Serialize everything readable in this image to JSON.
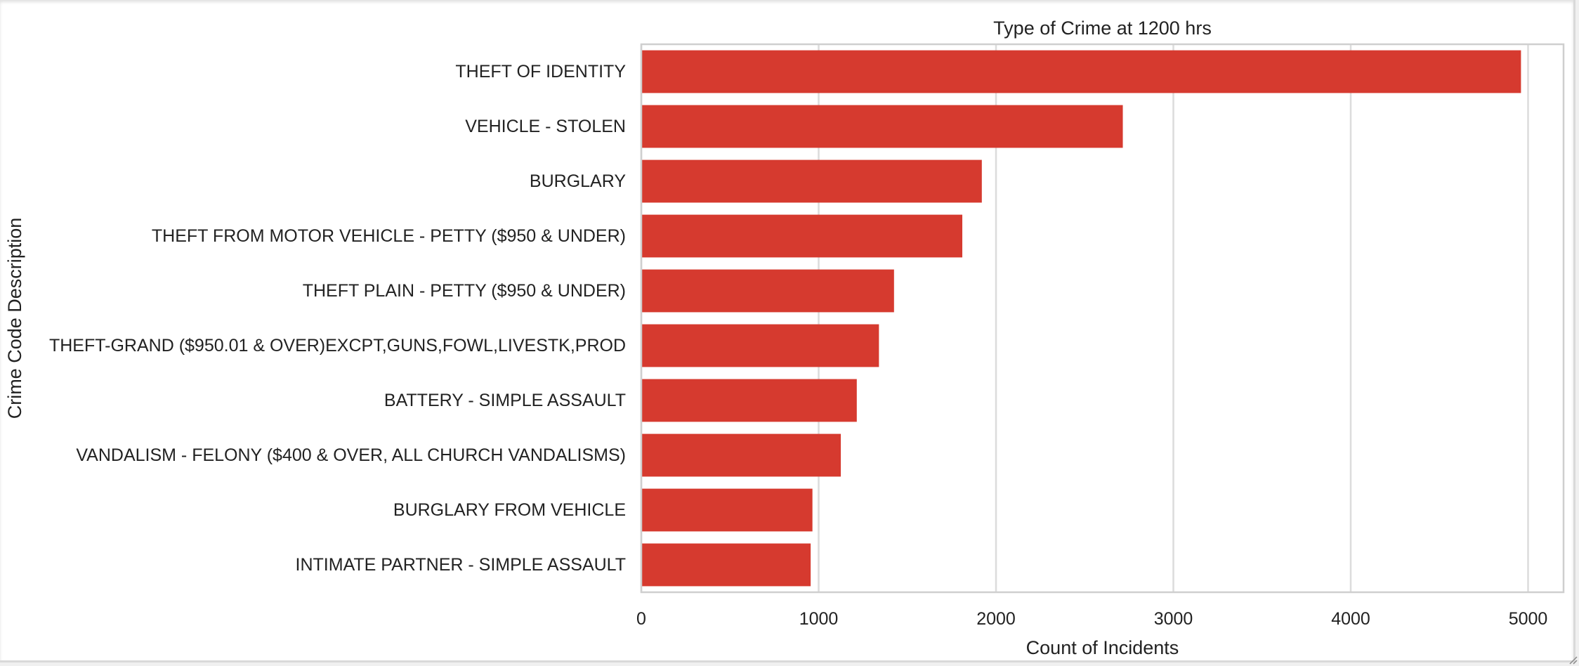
{
  "chart_data": {
    "type": "bar",
    "orientation": "horizontal",
    "title": "Type of Crime at 1200 hrs",
    "xlabel": "Count of Incidents",
    "ylabel": "Crime Code Description",
    "categories": [
      "THEFT OF IDENTITY",
      "VEHICLE - STOLEN",
      "BURGLARY",
      "THEFT FROM MOTOR VEHICLE - PETTY ($950 & UNDER)",
      "THEFT PLAIN - PETTY ($950 & UNDER)",
      "THEFT-GRAND ($950.01 & OVER)EXCPT,GUNS,FOWL,LIVESTK,PROD",
      "BATTERY - SIMPLE ASSAULT",
      "VANDALISM - FELONY ($400 & OVER, ALL CHURCH VANDALISMS)",
      "BURGLARY FROM VEHICLE",
      "INTIMATE PARTNER - SIMPLE ASSAULT"
    ],
    "values": [
      4960,
      2715,
      1920,
      1810,
      1425,
      1340,
      1215,
      1125,
      965,
      955
    ],
    "xlim": [
      0,
      5200
    ],
    "xticks": [
      0,
      1000,
      2000,
      3000,
      4000,
      5000
    ],
    "grid": "vertical",
    "bar_color": "#d63a2f"
  }
}
